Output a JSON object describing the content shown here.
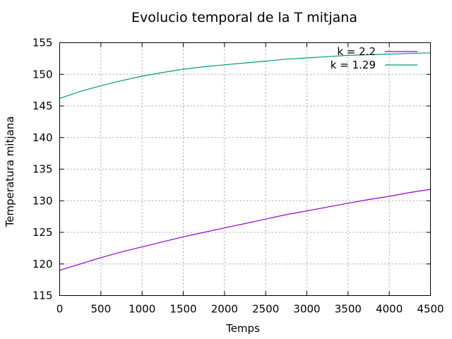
{
  "chart_data": {
    "type": "line",
    "title": "Evolucio temporal de la T mitjana",
    "xlabel": "Temps",
    "ylabel": "Temperatura mitjana",
    "xlim": [
      0,
      4500
    ],
    "ylim": [
      115,
      155
    ],
    "xticks": [
      0,
      500,
      1000,
      1500,
      2000,
      2500,
      3000,
      3500,
      4000,
      4500
    ],
    "yticks": [
      115,
      120,
      125,
      130,
      135,
      140,
      145,
      150,
      155
    ],
    "grid": true,
    "legend_position": "top-right",
    "series": [
      {
        "name": "k = 2.2",
        "color": "#9400d3",
        "x": [
          0,
          250,
          500,
          750,
          1000,
          1250,
          1500,
          1750,
          2000,
          2250,
          2500,
          2750,
          3000,
          3250,
          3500,
          3750,
          4000,
          4250,
          4500
        ],
        "y": [
          119.0,
          120.0,
          121.0,
          121.9,
          122.7,
          123.5,
          124.3,
          125.0,
          125.7,
          126.4,
          127.1,
          127.8,
          128.4,
          129.0,
          129.6,
          130.2,
          130.7,
          131.3,
          131.8
        ]
      },
      {
        "name": "k = 1.29",
        "color": "#009e73",
        "x": [
          0,
          250,
          500,
          750,
          1000,
          1250,
          1500,
          1750,
          2000,
          2250,
          2500,
          2750,
          3000,
          3250,
          3500,
          3750,
          4000,
          4250,
          4500
        ],
        "y": [
          146.2,
          147.3,
          148.2,
          149.0,
          149.7,
          150.3,
          150.8,
          151.2,
          151.5,
          151.8,
          152.1,
          152.4,
          152.6,
          152.8,
          153.0,
          153.1,
          153.2,
          153.3,
          153.4
        ]
      }
    ]
  }
}
